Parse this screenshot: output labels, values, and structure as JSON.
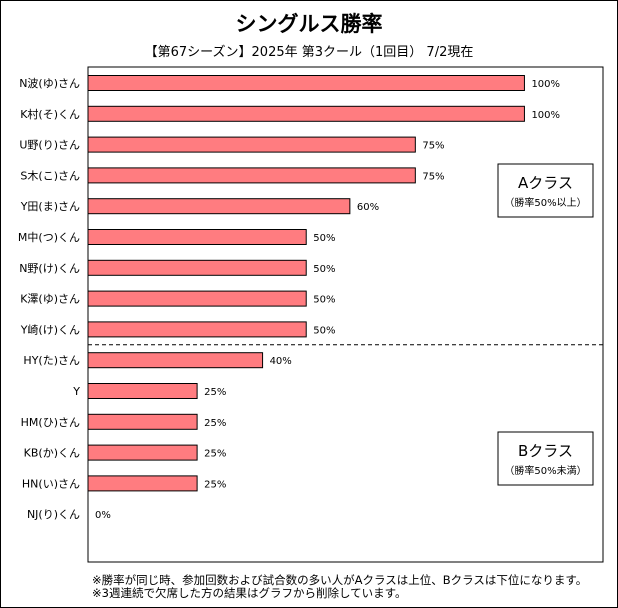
{
  "chart_data": {
    "type": "bar",
    "orientation": "horizontal",
    "title": "シングルス勝率",
    "subtitle": "【第67シーズン】2025年 第3クール（1回目） 7/2現在",
    "categories": [
      "N波(ゆ)さん",
      "K村(そ)くん",
      "U野(り)さん",
      "S木(こ)さん",
      "Y田(ま)さん",
      "M中(つ)くん",
      "N野(け)くん",
      "K澤(ゆ)さん",
      "Y崎(け)くん",
      "HY(た)さん",
      "Y",
      "HM(ひ)さん",
      "KB(か)くん",
      "HN(い)さん",
      "NJ(り)くん"
    ],
    "values": [
      100,
      100,
      75,
      75,
      60,
      50,
      50,
      50,
      50,
      40,
      25,
      25,
      25,
      25,
      0
    ],
    "data_labels": [
      "100%",
      "100%",
      "75%",
      "75%",
      "60%",
      "50%",
      "50%",
      "50%",
      "50%",
      "40%",
      "25%",
      "25%",
      "25%",
      "25%",
      "0%"
    ],
    "unit": "%",
    "xlim": [
      0,
      118
    ],
    "bar_color": "#ff7c80",
    "groups": [
      {
        "title": "Aクラス",
        "subtitle": "（勝率50%以上）",
        "count": 9
      },
      {
        "title": "Bクラス",
        "subtitle": "（勝率50%未満）",
        "count": 6
      }
    ],
    "legend": "none",
    "grid": false
  },
  "notes": [
    "※勝率が同じ時、参加回数および試合数の多い人がAクラスは上位、Bクラスは下位になります。",
    "※3週連続で欠席した方の結果はグラフから削除しています。"
  ]
}
